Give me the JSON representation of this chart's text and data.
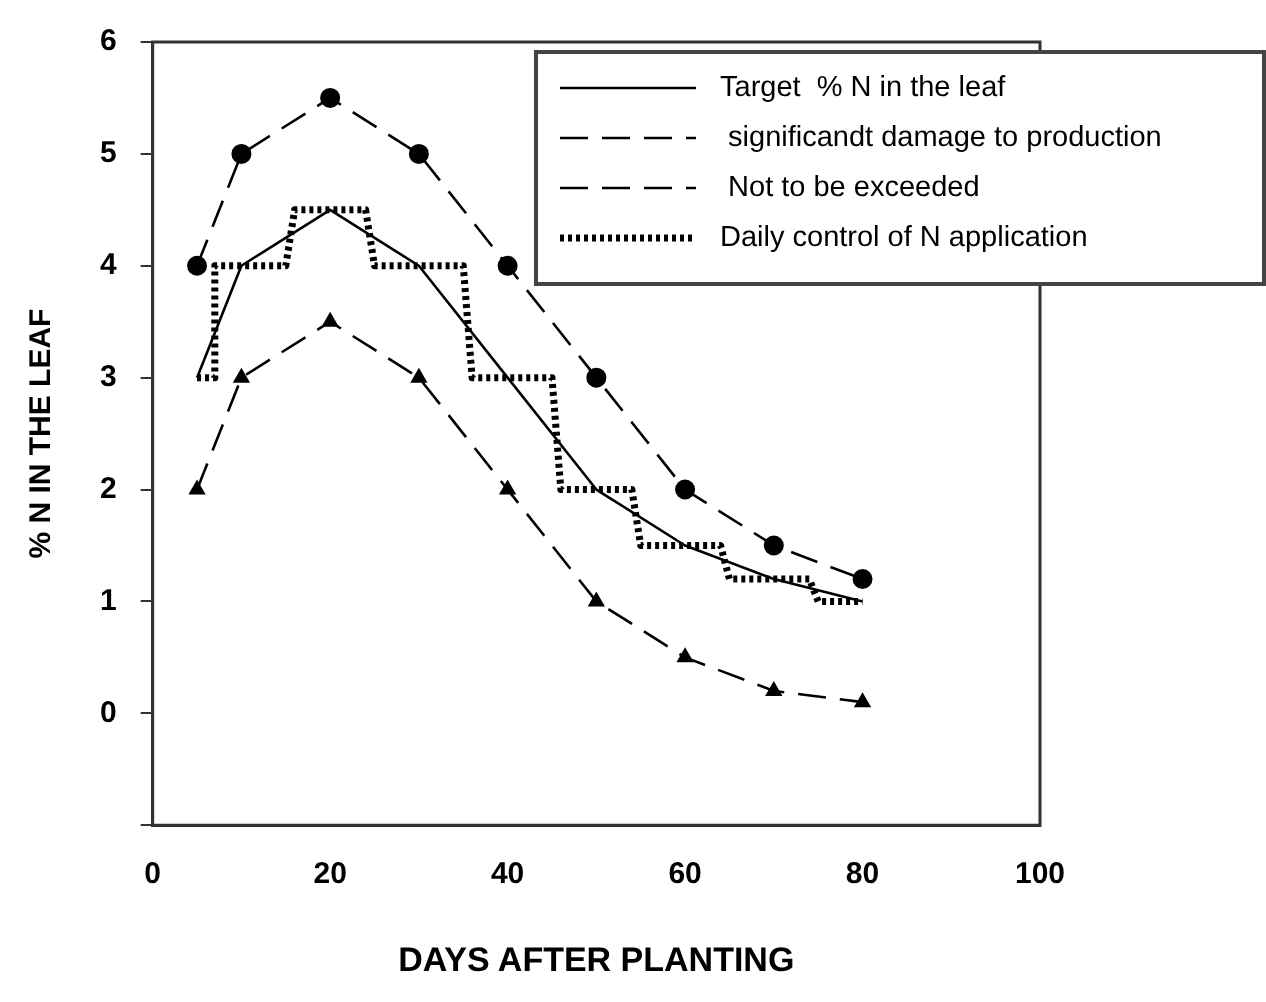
{
  "chart_data": {
    "type": "line",
    "xlabel": "DAYS AFTER PLANTING",
    "ylabel": "% N IN THE LEAF",
    "x": [
      5,
      10,
      20,
      30,
      40,
      50,
      60,
      70,
      80
    ],
    "xlim": [
      0,
      100
    ],
    "xticks": [
      0,
      20,
      40,
      60,
      80,
      100
    ],
    "ylim": [
      -1,
      6
    ],
    "yticks": [
      {
        "value": -1,
        "label": null
      },
      0,
      1,
      2,
      3,
      4,
      5,
      6
    ],
    "grid": false,
    "legend": "top right",
    "series": [
      {
        "name": "Target  % N in the leaf",
        "color": "#000000",
        "line_style": "solid",
        "marker": "none",
        "values": [
          3,
          4,
          4.5,
          4,
          3,
          2,
          1.5,
          1.2,
          1.0
        ]
      },
      {
        "name": " significandt damage to production",
        "color": "#000000",
        "line_style": "dashed",
        "marker": "triangle",
        "values": [
          2,
          3,
          3.5,
          3,
          2,
          1,
          0.5,
          0.2,
          0.1
        ]
      },
      {
        "name": " Not to be exceeded",
        "color": "#000000",
        "line_style": "dashed",
        "marker": "circle",
        "values": [
          4,
          5,
          5.5,
          5,
          4,
          3,
          2,
          1.5,
          1.2
        ]
      },
      {
        "name": "Daily control of N application",
        "color": "#000000",
        "line_style": "dotted",
        "marker": "none",
        "x": [
          5,
          7,
          7,
          15,
          16,
          24,
          25,
          35,
          36,
          45,
          46,
          54,
          55,
          64,
          65,
          74,
          75,
          80
        ],
        "values": [
          3,
          3,
          4,
          4,
          4.5,
          4.5,
          4,
          4,
          3,
          3,
          2,
          2,
          1.5,
          1.5,
          1.2,
          1.2,
          1.0,
          1.0
        ]
      }
    ]
  }
}
